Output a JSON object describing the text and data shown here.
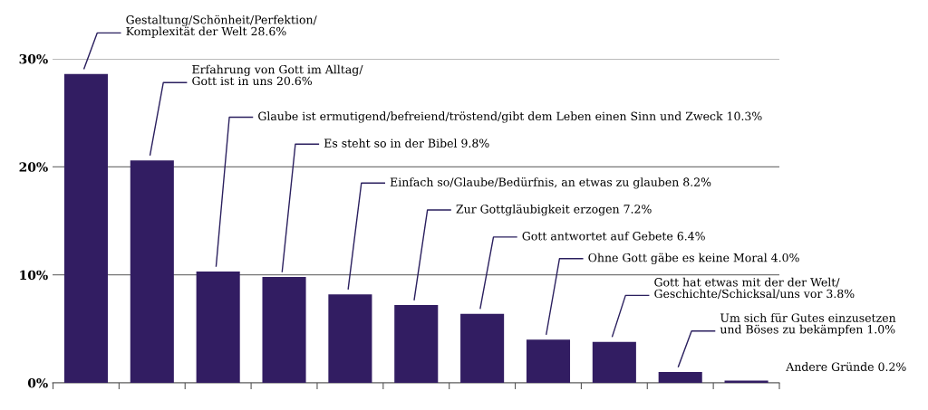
{
  "chart_data": {
    "type": "bar",
    "categories": [
      null,
      null,
      null,
      null,
      null,
      null,
      null,
      null,
      null,
      null,
      null
    ],
    "values": [
      28.6,
      20.6,
      10.3,
      9.8,
      8.2,
      7.2,
      6.4,
      4.0,
      3.8,
      1.0,
      0.2
    ],
    "color": "#321d62",
    "ylim": [
      0,
      30
    ],
    "yticks": [
      {
        "value": 0,
        "label": "0%"
      },
      {
        "value": 10,
        "label": "10%"
      },
      {
        "value": 20,
        "label": "20%"
      },
      {
        "value": 30,
        "label": "30%"
      }
    ],
    "grid": "y",
    "annotations": [
      "Gestaltung/Schönheit/Perfektion/\nKomplexität der Welt 28.6%",
      "Erfahrung von Gott im Alltag/\nGott ist in uns 20.6%",
      "Glaube ist ermutigend/befreiend/tröstend/gibt dem Leben einen Sinn und Zweck 10.3%",
      "Es steht so in der Bibel 9.8%",
      "Einfach so/Glaube/Bedürfnis, an etwas zu glauben 8.2%",
      "Zur Gottgläubigkeit erzogen 7.2%",
      "Gott antwortet auf Gebete 6.4%",
      "Ohne Gott gäbe es keine Moral 4.0%",
      "Gott hat etwas mit der der Welt/\nGeschichte/Schicksal/uns vor 3.8%",
      "Um sich für Gutes einzusetzen\nund Böses zu bekämpfen 1.0%",
      "Andere Gründe 0.2%"
    ]
  }
}
